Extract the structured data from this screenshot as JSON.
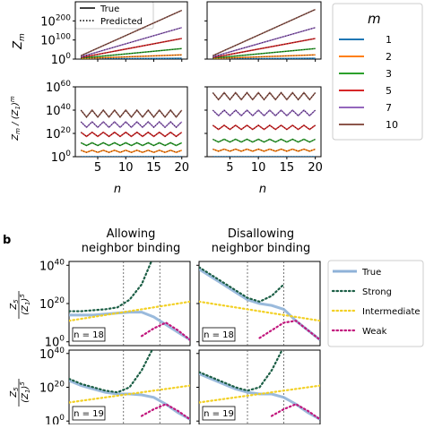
{
  "figure": {
    "panel_a": {
      "top_legend": [
        {
          "label": "True",
          "style": "solid"
        },
        {
          "label": "Predicted",
          "style": "dotted"
        }
      ],
      "m_legend": {
        "title": "m",
        "entries": [
          {
            "label": "1",
            "color": "#1f77b4"
          },
          {
            "label": "2",
            "color": "#ff7f0e"
          },
          {
            "label": "3",
            "color": "#2ca02c"
          },
          {
            "label": "5",
            "color": "#d62728"
          },
          {
            "label": "7",
            "color": "#9467bd"
          },
          {
            "label": "10",
            "color": "#8c564b"
          }
        ]
      }
    },
    "panel_b": {
      "label": "b",
      "col_titles": [
        [
          "Allowing",
          "neighbor binding"
        ],
        [
          "Disallowing",
          "neighbor binding"
        ]
      ],
      "row_n_boxes": [
        "n = 18",
        "n = 19"
      ],
      "legend": [
        {
          "label": "True",
          "color": "#8fb2d8",
          "style": "solid"
        },
        {
          "label": "Strong",
          "color": "#1b5e45",
          "style": "dotted"
        },
        {
          "label": "Intermediate",
          "color": "#f2d024",
          "style": "dotted"
        },
        {
          "label": "Weak",
          "color": "#c2177d",
          "style": "dotted"
        }
      ]
    }
  },
  "chart_data": [
    {
      "id": "a-top-left",
      "type": "line",
      "ylabel": "Z_m",
      "yscale": "log10",
      "ylim": [
        0,
        300
      ],
      "yticks": [
        "10^0",
        "10^100",
        "10^200"
      ],
      "xlim": [
        1,
        21
      ],
      "series": [
        {
          "name": "1",
          "x": [
            2,
            20
          ],
          "log10_y": [
            1,
            4
          ]
        },
        {
          "name": "2",
          "x": [
            2,
            20
          ],
          "log10_y": [
            3,
            22
          ]
        },
        {
          "name": "3",
          "x": [
            2,
            20
          ],
          "log10_y": [
            5,
            55
          ]
        },
        {
          "name": "5",
          "x": [
            2,
            20
          ],
          "log10_y": [
            8,
            108
          ]
        },
        {
          "name": "7",
          "x": [
            2,
            20
          ],
          "log10_y": [
            12,
            165
          ]
        },
        {
          "name": "10",
          "x": [
            2,
            20
          ],
          "log10_y": [
            18,
            255
          ]
        }
      ]
    },
    {
      "id": "a-top-right",
      "type": "line",
      "yscale": "log10",
      "ylim": [
        0,
        300
      ],
      "xlim": [
        1,
        21
      ],
      "series": [
        {
          "name": "1",
          "x": [
            2,
            20
          ],
          "log10_y": [
            1,
            4
          ]
        },
        {
          "name": "2",
          "x": [
            2,
            20
          ],
          "log10_y": [
            3,
            22
          ]
        },
        {
          "name": "3",
          "x": [
            2,
            20
          ],
          "log10_y": [
            5,
            55
          ]
        },
        {
          "name": "5",
          "x": [
            2,
            20
          ],
          "log10_y": [
            8,
            108
          ]
        },
        {
          "name": "7",
          "x": [
            2,
            20
          ],
          "log10_y": [
            12,
            165
          ]
        },
        {
          "name": "10",
          "x": [
            2,
            20
          ],
          "log10_y": [
            18,
            260
          ]
        }
      ]
    },
    {
      "id": "a-bottom-left",
      "type": "line",
      "ylabel": "Z_m / (Z_1)^(m/m)",
      "xlabel": "n",
      "yscale": "log10",
      "ylim": [
        0,
        60
      ],
      "yticks": [
        "10^0",
        "10^20",
        "10^40",
        "10^60"
      ],
      "xticks": [
        "5",
        "10",
        "15",
        "20"
      ],
      "xlim": [
        1,
        21
      ],
      "series": [
        {
          "name": "1",
          "base": 0,
          "amp": 0,
          "start": 2
        },
        {
          "name": "2",
          "base": 4,
          "amp": 1.5,
          "start": 2
        },
        {
          "name": "3",
          "base": 10,
          "amp": 2,
          "start": 2
        },
        {
          "name": "5",
          "base": 18,
          "amp": 3,
          "start": 2
        },
        {
          "name": "7",
          "base": 26,
          "amp": 4,
          "start": 2
        },
        {
          "name": "10",
          "base": 35,
          "amp": 5,
          "start": 2
        }
      ]
    },
    {
      "id": "a-bottom-right",
      "type": "line",
      "xlabel": "n",
      "yscale": "log10",
      "ylim": [
        0,
        60
      ],
      "xticks": [
        "5",
        "10",
        "15",
        "20"
      ],
      "xlim": [
        1,
        21
      ],
      "series": [
        {
          "name": "1",
          "base": 0,
          "amp": 0,
          "start": 2
        },
        {
          "name": "2",
          "base": 5,
          "amp": 1.5,
          "start": 2
        },
        {
          "name": "3",
          "base": 13,
          "amp": 2,
          "start": 2
        },
        {
          "name": "5",
          "base": 24,
          "amp": 3,
          "start": 2
        },
        {
          "name": "7",
          "base": 36,
          "amp": 4,
          "start": 2
        },
        {
          "name": "10",
          "base": 50,
          "amp": 5,
          "start": 2
        }
      ]
    },
    {
      "id": "b-row1-left",
      "type": "line",
      "ylabel": "Z_5 / (Z_1)^5",
      "yscale": "log10",
      "ylim": [
        -2,
        42
      ],
      "yticks": [
        "10^0",
        "10^20",
        "10^40"
      ],
      "n_box": "n = 18",
      "x": [
        0,
        1,
        2,
        3,
        4,
        5,
        6,
        7,
        8,
        9,
        10
      ],
      "series": [
        {
          "name": "True",
          "log10_y": [
            14,
            14,
            14,
            14.5,
            15,
            15.5,
            15.5,
            13,
            9,
            5,
            1
          ]
        },
        {
          "name": "Strong",
          "log10_y": [
            16,
            16,
            16.5,
            17,
            18,
            22,
            30,
            45,
            null,
            null,
            null
          ]
        },
        {
          "name": "Intermediate",
          "log10_y": [
            11,
            12,
            13,
            14,
            15,
            16,
            17,
            18,
            19,
            20,
            21
          ]
        },
        {
          "name": "Weak",
          "log10_y": [
            null,
            null,
            null,
            null,
            null,
            null,
            3,
            7,
            10,
            6,
            1
          ]
        }
      ],
      "vlines_x": [
        4.5,
        7.5
      ]
    },
    {
      "id": "b-row1-right",
      "type": "line",
      "yscale": "log10",
      "ylim": [
        -2,
        42
      ],
      "n_box": "n = 18",
      "x": [
        0,
        1,
        2,
        3,
        4,
        5,
        6,
        7,
        8,
        9,
        10
      ],
      "series": [
        {
          "name": "True",
          "log10_y": [
            38,
            34,
            30,
            26,
            22,
            20,
            19,
            17,
            11,
            6,
            1
          ]
        },
        {
          "name": "Strong",
          "log10_y": [
            39,
            35,
            31,
            27,
            23,
            21,
            24,
            30,
            null,
            null,
            null
          ]
        },
        {
          "name": "Intermediate",
          "log10_y": [
            21,
            20,
            19,
            18,
            17,
            16,
            15,
            14,
            13,
            12,
            11
          ]
        },
        {
          "name": "Weak",
          "log10_y": [
            null,
            null,
            null,
            null,
            null,
            2,
            6,
            10,
            11,
            6,
            1
          ]
        }
      ],
      "vlines_x": [
        4,
        7
      ]
    },
    {
      "id": "b-row2-left",
      "type": "line",
      "ylabel": "Z_5 / (Z_1)^5",
      "yscale": "log10",
      "ylim": [
        -2,
        42
      ],
      "yticks": [
        "10^0",
        "10^20",
        "10^40"
      ],
      "n_box": "n = 19",
      "x": [
        0,
        1,
        2,
        3,
        4,
        5,
        6,
        7,
        8,
        9,
        10
      ],
      "series": [
        {
          "name": "True",
          "log10_y": [
            24,
            21,
            19,
            17,
            16,
            16,
            15.5,
            14,
            10,
            5,
            1
          ]
        },
        {
          "name": "Strong",
          "log10_y": [
            25,
            22,
            20,
            18,
            17,
            20,
            30,
            44,
            null,
            null,
            null
          ]
        },
        {
          "name": "Intermediate",
          "log10_y": [
            11,
            12,
            13,
            14,
            15,
            16,
            17,
            18,
            19,
            20,
            21
          ]
        },
        {
          "name": "Weak",
          "log10_y": [
            null,
            null,
            null,
            null,
            null,
            null,
            3,
            7,
            10,
            6,
            1
          ]
        }
      ],
      "vlines_x": [
        4.5,
        7.5
      ]
    },
    {
      "id": "b-row2-right",
      "type": "line",
      "yscale": "log10",
      "ylim": [
        -2,
        42
      ],
      "n_box": "n = 19",
      "x": [
        0,
        1,
        2,
        3,
        4,
        5,
        6,
        7,
        8,
        9,
        10
      ],
      "series": [
        {
          "name": "True",
          "log10_y": [
            28,
            25,
            22,
            19,
            17,
            16,
            16,
            14,
            10,
            5,
            1
          ]
        },
        {
          "name": "Strong",
          "log10_y": [
            29,
            26,
            23,
            20,
            18,
            20,
            30,
            44,
            null,
            null,
            null
          ]
        },
        {
          "name": "Intermediate",
          "log10_y": [
            11,
            12,
            13,
            14,
            15,
            16,
            17,
            18,
            19,
            20,
            21
          ]
        },
        {
          "name": "Weak",
          "log10_y": [
            null,
            null,
            null,
            null,
            null,
            null,
            3,
            7,
            10,
            6,
            1
          ]
        }
      ],
      "vlines_x": [
        4,
        7
      ]
    }
  ]
}
